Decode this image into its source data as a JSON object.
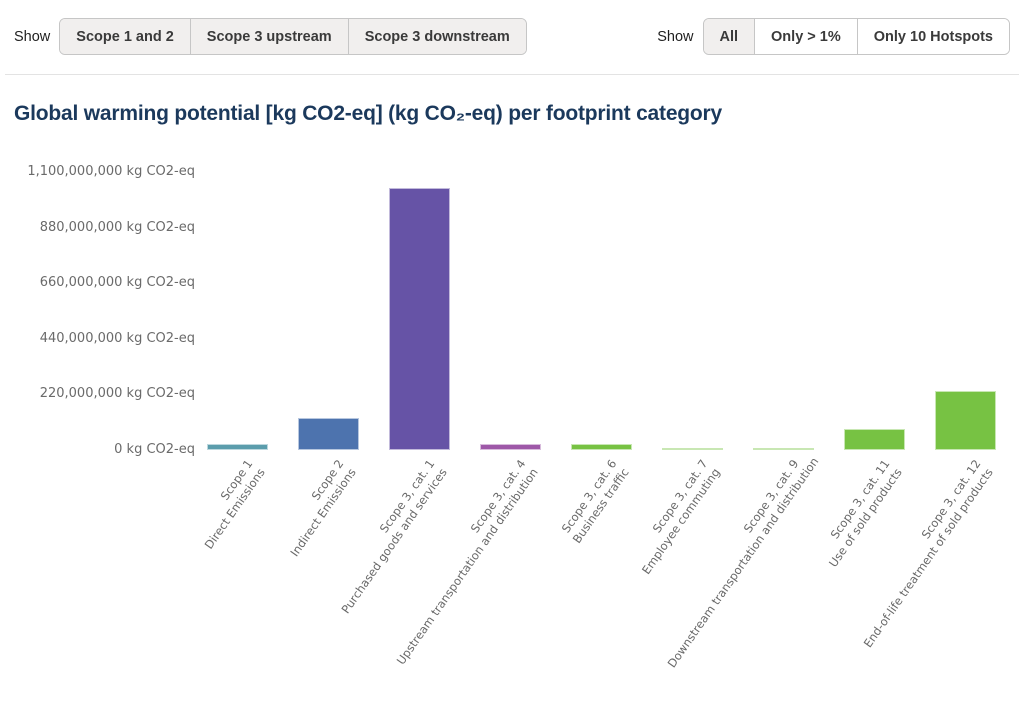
{
  "toolbar": {
    "left": {
      "label": "Show",
      "buttons": [
        {
          "label": "Scope 1 and 2",
          "active": true
        },
        {
          "label": "Scope 3 upstream",
          "active": true
        },
        {
          "label": "Scope 3 downstream",
          "active": true
        }
      ]
    },
    "right": {
      "label": "Show",
      "buttons": [
        {
          "label": "All",
          "active": true
        },
        {
          "label": "Only > 1%",
          "active": false
        },
        {
          "label": "Only 10 Hotspots",
          "active": false
        }
      ]
    }
  },
  "title": "Global warming potential [kg CO2-eq] (kg CO₂-eq) per footprint category",
  "colors": {
    "title_text": "#1b395c",
    "axis_text": "#6a6a6a",
    "button_active_bg": "#f1efee",
    "button_border": "#c6c6c6",
    "teal": "#5b9dac",
    "blue": "#4d73ae",
    "purple": "#6653a6",
    "orchid": "#9e58a8",
    "green": "#77c243"
  },
  "chart_data": {
    "type": "bar",
    "title": "Global warming potential [kg CO2-eq] (kg CO₂-eq) per footprint category",
    "xlabel": "",
    "ylabel": "kg CO2-eq",
    "ylim": [
      0,
      1100000000
    ],
    "grid": false,
    "legend": "none",
    "yticks": [
      {
        "value": 1100000000,
        "label": "1,100,000,000 kg CO2-eq"
      },
      {
        "value": 880000000,
        "label": "880,000,000 kg CO2-eq"
      },
      {
        "value": 660000000,
        "label": "660,000,000 kg CO2-eq"
      },
      {
        "value": 440000000,
        "label": "440,000,000 kg CO2-eq"
      },
      {
        "value": 220000000,
        "label": "220,000,000 kg CO2-eq"
      },
      {
        "value": 0,
        "label": "0 kg CO2-eq"
      }
    ],
    "categories": [
      {
        "line1": "Scope 1",
        "line2": "Direct Emissions"
      },
      {
        "line1": "Scope 2",
        "line2": "Indirect Emissions"
      },
      {
        "line1": "Scope 3, cat. 1",
        "line2": "Purchased goods and services"
      },
      {
        "line1": "Scope 3, cat. 4",
        "line2": "Upstream transportation and distribution"
      },
      {
        "line1": "Scope 3, cat. 6",
        "line2": "Business traffic"
      },
      {
        "line1": "Scope 3, cat. 7",
        "line2": "Employee commuting"
      },
      {
        "line1": "Scope 3, cat. 9",
        "line2": "Downstream transportation and distribution"
      },
      {
        "line1": "Scope 3, cat. 11",
        "line2": "Use of sold products"
      },
      {
        "line1": "Scope 3, cat. 12",
        "line2": "End-of-life treatment of sold products"
      }
    ],
    "values": [
      24000000,
      125000000,
      1035000000,
      22000000,
      23000000,
      6000000,
      6000000,
      85000000,
      232000000
    ],
    "bar_colors": [
      "#5b9dac",
      "#4d73ae",
      "#6653a6",
      "#9e58a8",
      "#77c243",
      "#77c243",
      "#77c243",
      "#77c243",
      "#77c243"
    ]
  }
}
